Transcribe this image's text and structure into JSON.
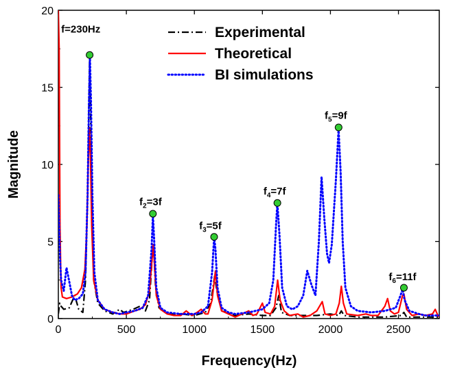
{
  "chart_data": {
    "type": "line",
    "xlabel": "Frequency(Hz)",
    "ylabel": "Magnitude",
    "xlim": [
      0,
      2800
    ],
    "ylim": [
      0,
      20
    ],
    "xticks": [
      0,
      500,
      1000,
      1500,
      2000,
      2500
    ],
    "yticks": [
      0,
      5,
      10,
      15,
      20
    ],
    "legend_position": "top-right",
    "colors": {
      "Experimental": "#000000",
      "Theoretical": "#ff0000",
      "BI simulations": "#0000ff",
      "marker": "#33cc33"
    },
    "series": [
      {
        "name": "Experimental",
        "style": "dash-dot",
        "points": [
          [
            0,
            0.3
          ],
          [
            10,
            1.0
          ],
          [
            20,
            0.8
          ],
          [
            40,
            0.6
          ],
          [
            80,
            0.7
          ],
          [
            120,
            1.5
          ],
          [
            150,
            0.6
          ],
          [
            180,
            0.4
          ],
          [
            200,
            2.5
          ],
          [
            215,
            8.0
          ],
          [
            225,
            14.0
          ],
          [
            230,
            17.0
          ],
          [
            235,
            14.5
          ],
          [
            245,
            8.0
          ],
          [
            260,
            2.5
          ],
          [
            290,
            1.0
          ],
          [
            340,
            0.5
          ],
          [
            400,
            0.3
          ],
          [
            450,
            0.6
          ],
          [
            480,
            0.4
          ],
          [
            550,
            0.6
          ],
          [
            600,
            0.8
          ],
          [
            640,
            0.5
          ],
          [
            670,
            1.2
          ],
          [
            690,
            4.0
          ],
          [
            700,
            4.6
          ],
          [
            715,
            2.0
          ],
          [
            740,
            0.7
          ],
          [
            800,
            0.3
          ],
          [
            900,
            0.3
          ],
          [
            1000,
            0.2
          ],
          [
            1080,
            0.4
          ],
          [
            1120,
            1.0
          ],
          [
            1150,
            2.8
          ],
          [
            1165,
            1.8
          ],
          [
            1200,
            0.5
          ],
          [
            1300,
            0.2
          ],
          [
            1400,
            0.3
          ],
          [
            1500,
            0.2
          ],
          [
            1560,
            0.2
          ],
          [
            1600,
            0.7
          ],
          [
            1620,
            1.5
          ],
          [
            1640,
            0.4
          ],
          [
            1700,
            0.2
          ],
          [
            1800,
            0.2
          ],
          [
            1900,
            0.2
          ],
          [
            2000,
            0.3
          ],
          [
            2060,
            0.2
          ],
          [
            2080,
            0.5
          ],
          [
            2100,
            0.2
          ],
          [
            2200,
            0.1
          ],
          [
            2400,
            0.1
          ],
          [
            2520,
            0.2
          ],
          [
            2540,
            0.4
          ],
          [
            2560,
            0.1
          ],
          [
            2800,
            0.1
          ]
        ]
      },
      {
        "name": "Theoretical",
        "style": "solid",
        "points": [
          [
            0,
            20
          ],
          [
            6,
            17.5
          ],
          [
            12,
            6.0
          ],
          [
            20,
            2.0
          ],
          [
            30,
            1.4
          ],
          [
            60,
            1.3
          ],
          [
            100,
            1.4
          ],
          [
            140,
            1.6
          ],
          [
            170,
            2.0
          ],
          [
            195,
            3.2
          ],
          [
            210,
            6.0
          ],
          [
            220,
            10.0
          ],
          [
            228,
            12.4
          ],
          [
            236,
            10.5
          ],
          [
            245,
            6.0
          ],
          [
            260,
            2.5
          ],
          [
            290,
            1.2
          ],
          [
            340,
            0.6
          ],
          [
            400,
            0.4
          ],
          [
            450,
            0.3
          ],
          [
            500,
            0.3
          ],
          [
            560,
            0.5
          ],
          [
            600,
            0.6
          ],
          [
            640,
            0.9
          ],
          [
            670,
            1.8
          ],
          [
            690,
            4.0
          ],
          [
            697,
            4.8
          ],
          [
            705,
            3.8
          ],
          [
            720,
            1.5
          ],
          [
            750,
            0.6
          ],
          [
            800,
            0.3
          ],
          [
            850,
            0.2
          ],
          [
            900,
            0.2
          ],
          [
            940,
            0.5
          ],
          [
            980,
            0.2
          ],
          [
            1020,
            0.4
          ],
          [
            1050,
            0.6
          ],
          [
            1080,
            0.3
          ],
          [
            1100,
            0.3
          ],
          [
            1130,
            1.2
          ],
          [
            1155,
            3.1
          ],
          [
            1170,
            1.5
          ],
          [
            1200,
            0.5
          ],
          [
            1250,
            0.3
          ],
          [
            1300,
            0.1
          ],
          [
            1350,
            0.3
          ],
          [
            1400,
            0.5
          ],
          [
            1430,
            0.2
          ],
          [
            1460,
            0.3
          ],
          [
            1500,
            1.0
          ],
          [
            1520,
            0.4
          ],
          [
            1560,
            0.3
          ],
          [
            1590,
            0.8
          ],
          [
            1612,
            2.5
          ],
          [
            1630,
            1.2
          ],
          [
            1660,
            0.5
          ],
          [
            1700,
            0.2
          ],
          [
            1760,
            0.3
          ],
          [
            1800,
            0.1
          ],
          [
            1850,
            0.2
          ],
          [
            1900,
            0.5
          ],
          [
            1940,
            1.1
          ],
          [
            1960,
            0.3
          ],
          [
            2000,
            0.2
          ],
          [
            2040,
            0.3
          ],
          [
            2065,
            1.0
          ],
          [
            2080,
            2.1
          ],
          [
            2095,
            1.0
          ],
          [
            2120,
            0.3
          ],
          [
            2200,
            0.2
          ],
          [
            2260,
            0.3
          ],
          [
            2300,
            0.2
          ],
          [
            2350,
            0.2
          ],
          [
            2400,
            0.8
          ],
          [
            2420,
            1.3
          ],
          [
            2440,
            0.5
          ],
          [
            2470,
            0.3
          ],
          [
            2500,
            0.4
          ],
          [
            2530,
            1.5
          ],
          [
            2540,
            1.6
          ],
          [
            2560,
            0.6
          ],
          [
            2600,
            0.2
          ],
          [
            2650,
            0.3
          ],
          [
            2700,
            0.2
          ],
          [
            2750,
            0.3
          ],
          [
            2770,
            0.6
          ],
          [
            2790,
            0.2
          ],
          [
            2800,
            0.1
          ]
        ]
      },
      {
        "name": "BI simulations",
        "style": "dotted",
        "points": [
          [
            0,
            8.0
          ],
          [
            6,
            6.0
          ],
          [
            12,
            4.0
          ],
          [
            20,
            2.5
          ],
          [
            40,
            1.8
          ],
          [
            60,
            3.3
          ],
          [
            80,
            2.4
          ],
          [
            100,
            1.5
          ],
          [
            120,
            1.2
          ],
          [
            150,
            1.3
          ],
          [
            180,
            1.6
          ],
          [
            200,
            3.0
          ],
          [
            215,
            8.0
          ],
          [
            225,
            14.0
          ],
          [
            232,
            17.0
          ],
          [
            240,
            14.0
          ],
          [
            250,
            8.0
          ],
          [
            265,
            3.0
          ],
          [
            290,
            1.2
          ],
          [
            340,
            0.6
          ],
          [
            400,
            0.4
          ],
          [
            450,
            0.3
          ],
          [
            500,
            0.4
          ],
          [
            560,
            0.5
          ],
          [
            620,
            0.7
          ],
          [
            660,
            1.5
          ],
          [
            685,
            4.5
          ],
          [
            695,
            6.7
          ],
          [
            705,
            5.0
          ],
          [
            720,
            2.0
          ],
          [
            750,
            0.7
          ],
          [
            800,
            0.4
          ],
          [
            900,
            0.3
          ],
          [
            1000,
            0.3
          ],
          [
            1050,
            0.4
          ],
          [
            1100,
            0.8
          ],
          [
            1130,
            3.0
          ],
          [
            1145,
            5.3
          ],
          [
            1155,
            4.5
          ],
          [
            1170,
            2.0
          ],
          [
            1200,
            0.7
          ],
          [
            1250,
            0.4
          ],
          [
            1300,
            0.3
          ],
          [
            1400,
            0.4
          ],
          [
            1500,
            0.6
          ],
          [
            1550,
            1.0
          ],
          [
            1580,
            2.5
          ],
          [
            1600,
            6.0
          ],
          [
            1610,
            7.5
          ],
          [
            1625,
            5.5
          ],
          [
            1645,
            2.0
          ],
          [
            1680,
            0.8
          ],
          [
            1720,
            0.6
          ],
          [
            1760,
            0.8
          ],
          [
            1800,
            1.5
          ],
          [
            1830,
            3.1
          ],
          [
            1860,
            2.2
          ],
          [
            1890,
            1.5
          ],
          [
            1915,
            5.0
          ],
          [
            1935,
            9.2
          ],
          [
            1955,
            6.5
          ],
          [
            1975,
            4.2
          ],
          [
            1990,
            3.6
          ],
          [
            2010,
            4.8
          ],
          [
            2040,
            9.0
          ],
          [
            2060,
            12.3
          ],
          [
            2075,
            9.5
          ],
          [
            2090,
            5.0
          ],
          [
            2110,
            2.0
          ],
          [
            2150,
            0.8
          ],
          [
            2200,
            0.5
          ],
          [
            2300,
            0.4
          ],
          [
            2400,
            0.5
          ],
          [
            2480,
            0.7
          ],
          [
            2515,
            1.5
          ],
          [
            2530,
            1.9
          ],
          [
            2545,
            1.2
          ],
          [
            2580,
            0.5
          ],
          [
            2650,
            0.3
          ],
          [
            2700,
            0.2
          ],
          [
            2800,
            0.2
          ]
        ]
      }
    ],
    "markers": [
      {
        "x": 230,
        "y": 17.1,
        "label": "f=230Hz",
        "sub": "",
        "label_x": 165,
        "label_y": 18.55
      },
      {
        "x": 695,
        "y": 6.8,
        "label": "f",
        "sub": "2",
        "suffix": "=3f",
        "label_x": 678,
        "label_y": 7.35
      },
      {
        "x": 1145,
        "y": 5.3,
        "label": "f",
        "sub": "3",
        "suffix": "=5f",
        "label_x": 1117,
        "label_y": 5.8
      },
      {
        "x": 1610,
        "y": 7.5,
        "label": "f",
        "sub": "4",
        "suffix": "=7f",
        "label_x": 1590,
        "label_y": 8.05
      },
      {
        "x": 2060,
        "y": 12.4,
        "label": "f",
        "sub": "5",
        "suffix": "=9f",
        "label_x": 2040,
        "label_y": 12.95
      },
      {
        "x": 2540,
        "y": 2.0,
        "label": "f",
        "sub": "6",
        "suffix": "=11f",
        "label_x": 2530,
        "label_y": 2.5
      }
    ]
  }
}
